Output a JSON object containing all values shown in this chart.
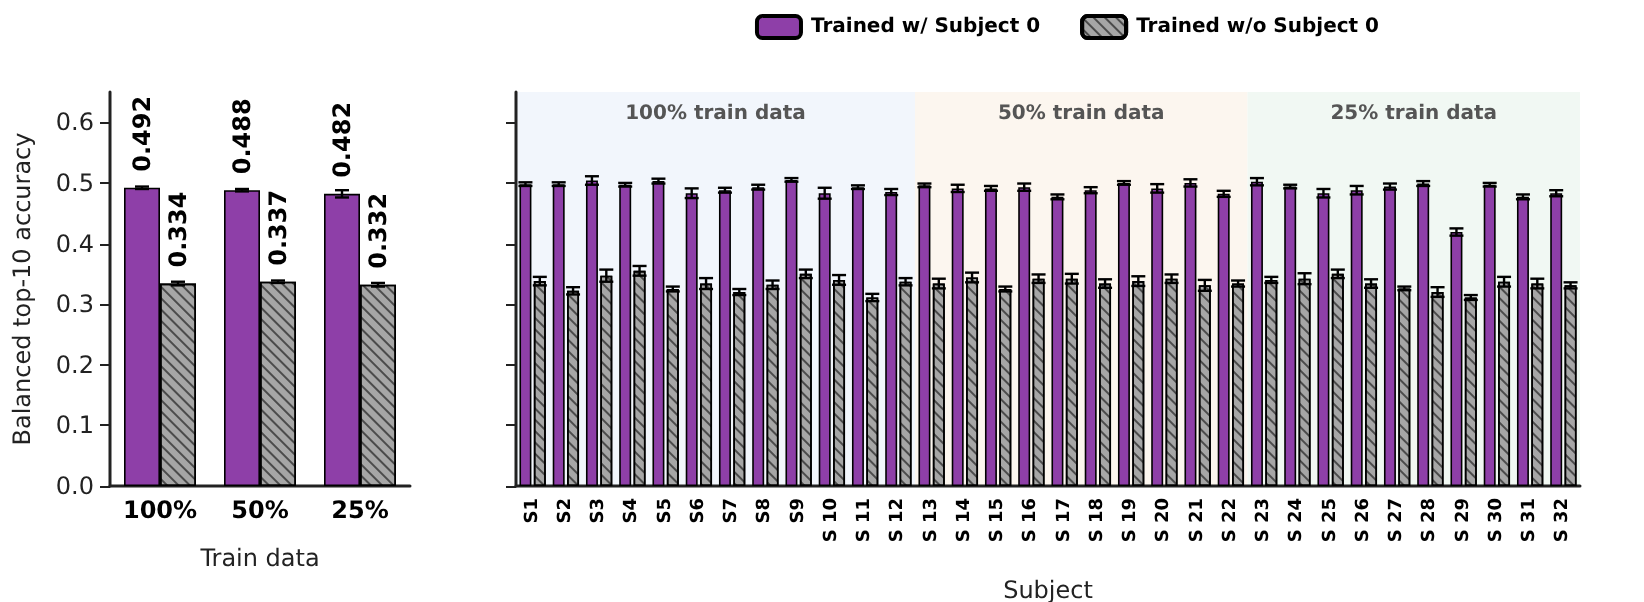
{
  "chart_data": [
    {
      "type": "bar",
      "xlabel": "Train data",
      "ylabel": "Balanced top-10 accuracy",
      "categories": [
        "100%",
        "50%",
        "25%"
      ],
      "ylim": [
        0,
        0.65
      ],
      "yticks": [
        {
          "value": 0,
          "label": "0.0"
        },
        0.1,
        0.2,
        0.3,
        0.4,
        0.5,
        0.6
      ],
      "data_labels": true,
      "legend": false,
      "grid": false,
      "series": [
        {
          "color": "#8e3fa8",
          "values": [
            0.492,
            0.488,
            0.482
          ],
          "errors": [
            0.002,
            0.002,
            0.006
          ]
        },
        {
          "color": "#a6a6a6",
          "values": [
            0.334,
            0.337,
            0.332
          ],
          "errors": [
            0.003,
            0.002,
            0.003
          ]
        }
      ]
    },
    {
      "type": "bar",
      "xlabel": "Subject",
      "categories": [
        "S1",
        "S2",
        "S3",
        "S4",
        "S5",
        "S6",
        "S7",
        "S8",
        "S9",
        "S 10",
        "S 11",
        "S 12",
        "S 13",
        "S 14",
        "S 15",
        "S 16",
        "S 17",
        "S 18",
        "S 19",
        "S 20",
        "S 21",
        "S 22",
        "S 23",
        "S 24",
        "S 25",
        "S 26",
        "S 27",
        "S 28",
        "S 29",
        "S 30",
        "S 31",
        "S 32"
      ],
      "ylim": [
        0,
        0.65
      ],
      "yticks": [
        0.0,
        0.1,
        0.2,
        0.3,
        0.4,
        0.5,
        0.6
      ],
      "tick_labels": "x",
      "legend": "top",
      "grid": false,
      "bands": [
        {
          "axis": "x",
          "from": "S1",
          "to": "S 12",
          "label": "100% train data",
          "color": "#f2f6fc"
        },
        {
          "axis": "x",
          "from": "S 13",
          "to": "S 22",
          "label": "50% train data",
          "color": "#fcf6ef"
        },
        {
          "axis": "x",
          "from": "S 23",
          "to": "S 32",
          "label": "25% train data",
          "color": "#f1f8f3"
        }
      ],
      "series": [
        {
          "name": "Trained w/ Subject 0",
          "color": "#8e3fa8",
          "values": [
            0.498,
            0.498,
            0.504,
            0.497,
            0.503,
            0.483,
            0.488,
            0.493,
            0.505,
            0.483,
            0.493,
            0.485,
            0.496,
            0.491,
            0.491,
            0.493,
            0.477,
            0.488,
            0.5,
            0.491,
            0.5,
            0.482,
            0.502,
            0.494,
            0.483,
            0.488,
            0.494,
            0.499,
            0.419,
            0.497,
            0.477,
            0.483
          ],
          "errors": [
            0.003,
            0.003,
            0.007,
            0.003,
            0.004,
            0.008,
            0.004,
            0.004,
            0.003,
            0.009,
            0.003,
            0.005,
            0.003,
            0.006,
            0.004,
            0.006,
            0.004,
            0.005,
            0.003,
            0.007,
            0.006,
            0.005,
            0.006,
            0.003,
            0.007,
            0.007,
            0.005,
            0.004,
            0.006,
            0.003,
            0.004,
            0.005
          ]
        },
        {
          "name": "Trained w/o Subject 0",
          "color": "#a6a6a6",
          "values": [
            0.338,
            0.322,
            0.347,
            0.355,
            0.325,
            0.334,
            0.32,
            0.332,
            0.35,
            0.34,
            0.311,
            0.337,
            0.334,
            0.344,
            0.325,
            0.342,
            0.342,
            0.334,
            0.338,
            0.342,
            0.331,
            0.334,
            0.34,
            0.342,
            0.35,
            0.334,
            0.326,
            0.32,
            0.311,
            0.337,
            0.334,
            0.331
          ],
          "errors": [
            0.007,
            0.006,
            0.01,
            0.008,
            0.004,
            0.009,
            0.005,
            0.007,
            0.007,
            0.008,
            0.006,
            0.006,
            0.008,
            0.008,
            0.004,
            0.007,
            0.008,
            0.007,
            0.008,
            0.007,
            0.009,
            0.005,
            0.005,
            0.009,
            0.007,
            0.007,
            0.003,
            0.008,
            0.004,
            0.008,
            0.008,
            0.005
          ]
        }
      ]
    }
  ]
}
